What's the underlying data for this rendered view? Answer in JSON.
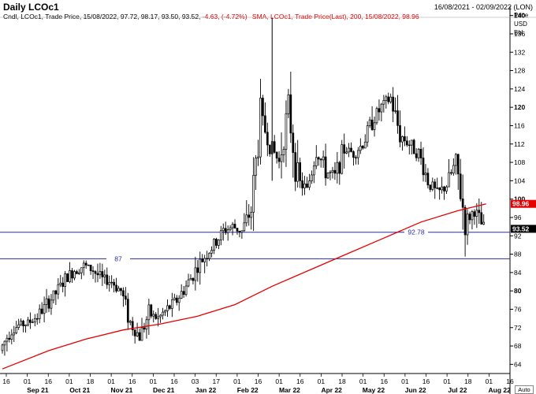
{
  "header": {
    "title": "Daily LCOc1",
    "date_range": "16/08/2021 - 02/09/2022 (LON)",
    "legend_main": "Cndl, LCOc1, Trade Price, 15/08/2022, 97.72, 98.17, 93.50, 93.52,",
    "legend_change": "-4.63, (-4.72%)",
    "legend_sma": "SMA, LCOc1, Trade Price(Last), 200, 15/08/2022, 98.96",
    "units": [
      "Price",
      "USD",
      "Bbl"
    ],
    "auto_label": "Auto"
  },
  "colors": {
    "candle": "#000000",
    "sma": "#e60000",
    "hline": "#2a2aa0",
    "grid": "#c8c8c8",
    "sma_badge": "#e60000",
    "price_badge": "#000000"
  },
  "chart_data": {
    "type": "line",
    "title": "Daily LCOc1",
    "xlabel": "",
    "ylabel": "Price USD Bbl",
    "ylim": [
      62,
      142
    ],
    "yticks": [
      64,
      68,
      72,
      76,
      80,
      84,
      88,
      92,
      96,
      100,
      104,
      108,
      112,
      116,
      120,
      124,
      128,
      132,
      136,
      140
    ],
    "ytick_labels": [
      "64",
      "68",
      "72",
      "76",
      "80",
      "84",
      "88",
      "92",
      "96",
      "100",
      "104",
      "108",
      "112",
      "116",
      "120",
      "124",
      "128",
      "132",
      "136",
      "140"
    ],
    "bold_yticks": [
      80,
      100,
      120,
      140
    ],
    "x_day_ticks": [
      "16",
      "01",
      "16",
      "01",
      "18",
      "01",
      "16",
      "01",
      "16",
      "03",
      "17",
      "01",
      "16",
      "01",
      "16",
      "01",
      "18",
      "01",
      "16",
      "01",
      "16",
      "01",
      "18",
      "01",
      "16"
    ],
    "x_month_labels": [
      "Sep 21",
      "Oct 21",
      "Nov 21",
      "Dec 21",
      "Jan 22",
      "Feb 22",
      "Mar 22",
      "Apr 22",
      "May 22",
      "Jun 22",
      "Jul 22",
      "Aug 22"
    ],
    "horizontal_lines": [
      {
        "value": 92.78,
        "label": "92.78"
      },
      {
        "value": 87,
        "label": "87"
      }
    ],
    "last_values": {
      "sma": "98.96",
      "price": "93.52"
    },
    "series": [
      {
        "name": "LCOc1",
        "kind": "candlestick",
        "x": [
          "2021-08-16",
          "2021-08-23",
          "2021-08-30",
          "2021-09-06",
          "2021-09-13",
          "2021-09-20",
          "2021-09-27",
          "2021-10-04",
          "2021-10-11",
          "2021-10-18",
          "2021-10-25",
          "2021-11-01",
          "2021-11-08",
          "2021-11-15",
          "2021-11-22",
          "2021-11-29",
          "2021-12-06",
          "2021-12-13",
          "2021-12-20",
          "2021-12-27",
          "2022-01-03",
          "2022-01-10",
          "2022-01-17",
          "2022-01-24",
          "2022-01-31",
          "2022-02-07",
          "2022-02-14",
          "2022-02-21",
          "2022-02-28",
          "2022-03-07",
          "2022-03-14",
          "2022-03-21",
          "2022-03-28",
          "2022-04-04",
          "2022-04-11",
          "2022-04-18",
          "2022-04-25",
          "2022-05-02",
          "2022-05-09",
          "2022-05-16",
          "2022-05-23",
          "2022-05-30",
          "2022-06-06",
          "2022-06-13",
          "2022-06-20",
          "2022-06-27",
          "2022-07-04",
          "2022-07-11",
          "2022-07-18",
          "2022-07-25",
          "2022-08-01",
          "2022-08-08",
          "2022-08-15"
        ],
        "close": [
          67,
          71,
          72.5,
          73,
          74.5,
          77,
          79.5,
          82.5,
          84.5,
          85.5,
          84.5,
          82.5,
          82,
          80,
          73,
          70,
          75,
          74,
          76,
          78,
          81,
          84.5,
          87.5,
          90,
          93,
          94,
          93,
          97.5,
          118,
          112,
          108,
          120,
          104,
          102,
          111,
          106,
          105,
          111,
          110,
          112,
          117,
          120,
          122,
          114,
          112,
          110,
          104,
          101,
          103,
          108,
          95,
          97.5,
          93.52
        ]
      },
      {
        "name": "SMA 200",
        "kind": "line",
        "x": [
          "2021-08-16",
          "2021-09-20",
          "2021-10-18",
          "2021-11-15",
          "2021-12-13",
          "2022-01-10",
          "2022-02-07",
          "2022-03-07",
          "2022-04-04",
          "2022-05-02",
          "2022-05-30",
          "2022-06-27",
          "2022-07-25",
          "2022-08-15"
        ],
        "values": [
          63,
          67,
          69.5,
          71.5,
          72.8,
          74.5,
          77,
          81,
          84.5,
          88,
          91.5,
          95,
          97.5,
          98.96
        ]
      }
    ]
  }
}
